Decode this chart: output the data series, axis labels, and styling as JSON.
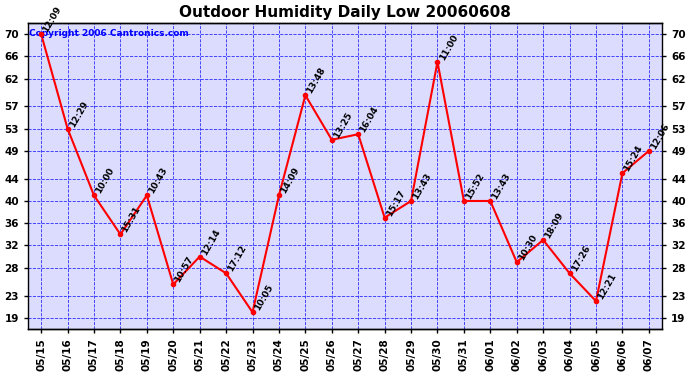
{
  "title": "Outdoor Humidity Daily Low 20060608",
  "copyright": "Copyright 2006 Cantronics.com",
  "dates": [
    "05/15",
    "05/16",
    "05/17",
    "05/18",
    "05/19",
    "05/20",
    "05/21",
    "05/22",
    "05/23",
    "05/24",
    "05/25",
    "05/26",
    "05/27",
    "05/28",
    "05/29",
    "05/30",
    "05/31",
    "06/01",
    "06/02",
    "06/03",
    "06/04",
    "06/05",
    "06/06",
    "06/07"
  ],
  "values": [
    70,
    53,
    41,
    34,
    41,
    25,
    30,
    27,
    20,
    41,
    59,
    51,
    52,
    37,
    40,
    65,
    40,
    40,
    29,
    33,
    27,
    22,
    45,
    49
  ],
  "labels": [
    "12:09",
    "12:29",
    "10:00",
    "15:31",
    "10:43",
    "10:57",
    "12:14",
    "17:12",
    "10:05",
    "14:09",
    "13:48",
    "13:25",
    "16:04",
    "15:17",
    "13:43",
    "11:00",
    "15:52",
    "13:43",
    "10:30",
    "18:09",
    "17:26",
    "12:21",
    "15:24",
    "12:06"
  ],
  "ylim": [
    17,
    72
  ],
  "yticks": [
    19,
    23,
    28,
    32,
    36,
    40,
    44,
    49,
    53,
    57,
    62,
    66,
    70
  ],
  "line_color": "red",
  "marker_color": "red",
  "plot_bg": "#dcdcff",
  "grid_color": "blue",
  "title_fontsize": 11,
  "label_fontsize": 6.5,
  "tick_fontsize": 7.5,
  "copyright_fontsize": 6.5
}
